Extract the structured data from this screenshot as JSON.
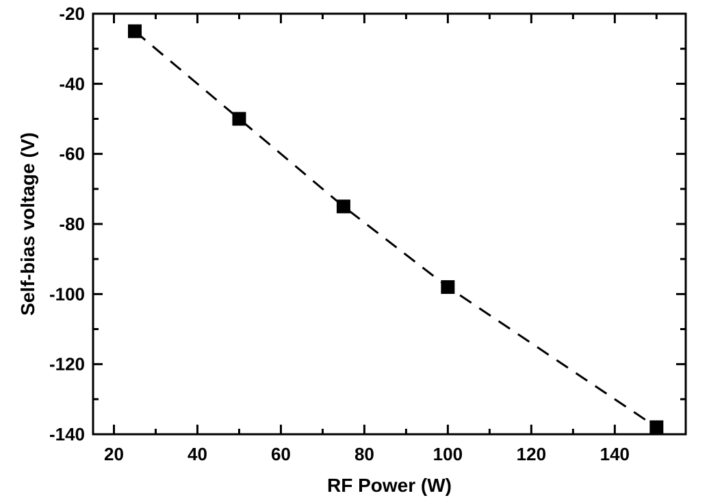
{
  "chart_data": {
    "type": "scatter",
    "title": "",
    "xlabel": "RF Power (W)",
    "ylabel": "Self-bias voltage (V)",
    "xlim": [
      15,
      157
    ],
    "ylim": [
      -140,
      -20
    ],
    "x_ticks": [
      20,
      40,
      60,
      80,
      100,
      120,
      140
    ],
    "y_ticks": [
      -20,
      -40,
      -60,
      -80,
      -100,
      -120,
      -140
    ],
    "grid": false,
    "legend": "none",
    "series": [
      {
        "x": [
          25,
          50,
          75,
          100,
          150
        ],
        "y": [
          -25,
          -50,
          -75,
          -98,
          -138
        ],
        "marker": "square",
        "line_style": "dashed",
        "color": "#000000"
      }
    ]
  }
}
